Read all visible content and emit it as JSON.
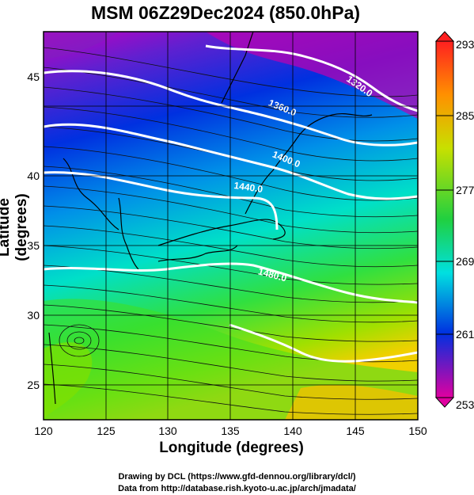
{
  "title": "MSM 06Z29Dec2024 (850.0hPa)",
  "xlabel": "Longitude (degrees)",
  "ylabel": "Latitude  (degrees)",
  "credit_line1": "Drawing by DCL (https://www.gfd-dennou.org/library/dcl/)",
  "credit_line2": "Data from http://database.rish.kyoto-u.ac.jp/arch/jmadata/",
  "x_ticks": [
    "120",
    "125",
    "130",
    "135",
    "140",
    "145",
    "150"
  ],
  "y_ticks": [
    "25",
    "30",
    "35",
    "40",
    "45"
  ],
  "colorbar_ticks": [
    "293",
    "285",
    "277",
    "269",
    "261",
    "253"
  ],
  "contour_labels": [
    "1320.0",
    "1360.0",
    "1400.0",
    "1440.0",
    "1480.0"
  ],
  "colors": {
    "low": "#cc0099",
    "mid_low": "#0020d0",
    "mid": "#00d8c0",
    "mid_high": "#40e000",
    "high": "#e8c000",
    "top": "#ff2020"
  }
}
